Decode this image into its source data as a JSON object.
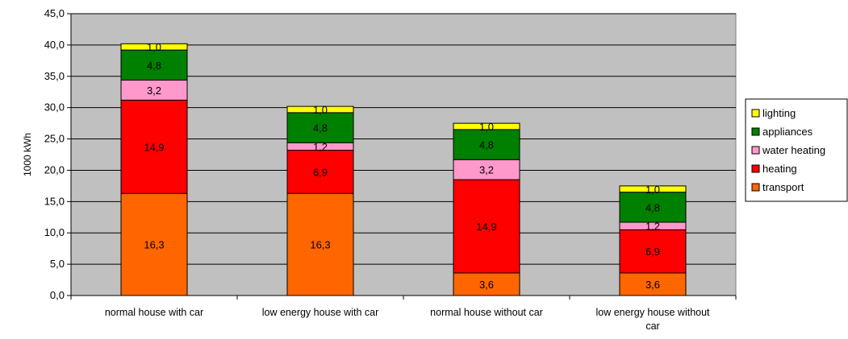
{
  "chart_data": {
    "type": "bar",
    "stacked": true,
    "title": "",
    "xlabel": "",
    "ylabel": "1000 kWh",
    "ylim": [
      0,
      45
    ],
    "yticks": [
      "0,0",
      "5,0",
      "10,0",
      "15,0",
      "20,0",
      "25,0",
      "30,0",
      "35,0",
      "40,0",
      "45,0"
    ],
    "grid": true,
    "legend_position": "right",
    "categories": [
      [
        "normal house with car"
      ],
      [
        "low energy house with car"
      ],
      [
        "normal house without car"
      ],
      [
        "low energy house without",
        "car"
      ]
    ],
    "series": [
      {
        "name": "transport",
        "color": "#ff6600",
        "values": [
          16.3,
          16.3,
          3.6,
          3.6
        ],
        "labels": [
          "16,3",
          "16,3",
          "3,6",
          "3,6"
        ]
      },
      {
        "name": "heating",
        "color": "#ff0000",
        "values": [
          14.9,
          6.9,
          14.9,
          6.9
        ],
        "labels": [
          "14,9",
          "6,9",
          "14,9",
          "6,9"
        ]
      },
      {
        "name": "water heating",
        "color": "#ff99cc",
        "values": [
          3.2,
          1.2,
          3.2,
          1.2
        ],
        "labels": [
          "3,2",
          "1,2",
          "3,2",
          "1,2"
        ]
      },
      {
        "name": "appliances",
        "color": "#008000",
        "values": [
          4.8,
          4.8,
          4.8,
          4.8
        ],
        "labels": [
          "4,8",
          "4,8",
          "4,8",
          "4,8"
        ]
      },
      {
        "name": "lighting",
        "color": "#ffff00",
        "values": [
          1.0,
          1.0,
          1.0,
          1.0
        ],
        "labels": [
          "1,0",
          "1,0",
          "1,0",
          "1,0"
        ]
      }
    ],
    "legend_order": [
      "lighting",
      "appliances",
      "water heating",
      "heating",
      "transport"
    ],
    "plot_background": "#c0c0c0"
  }
}
